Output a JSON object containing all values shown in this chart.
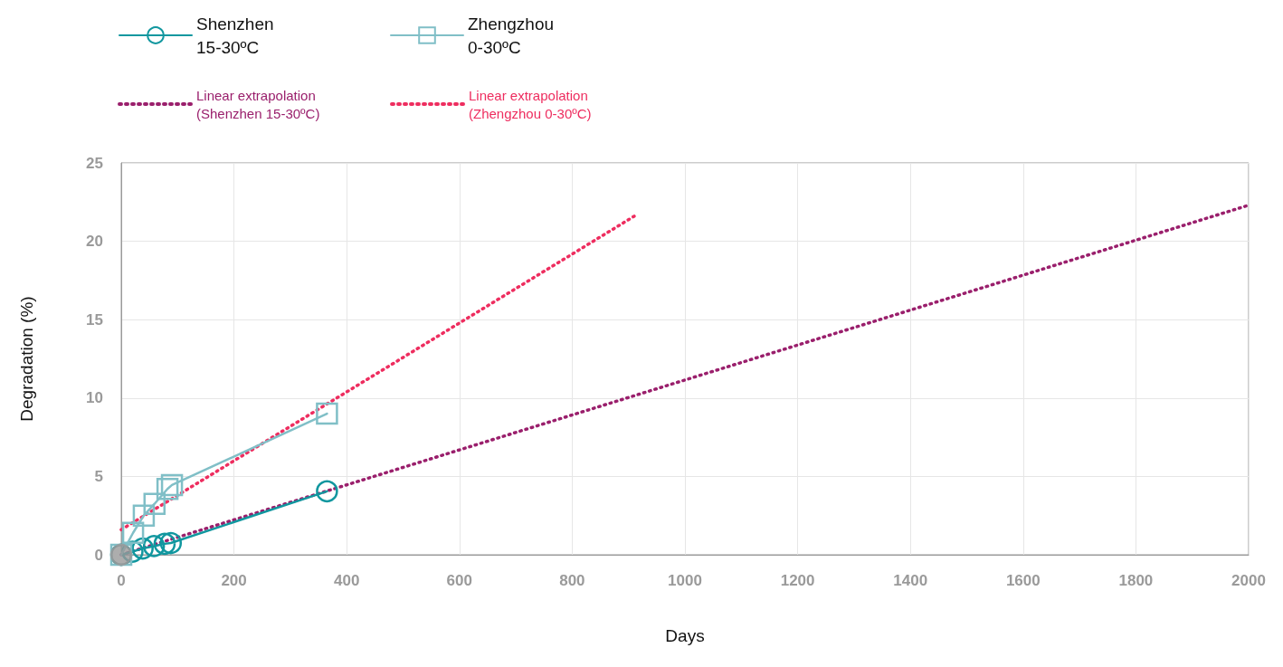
{
  "chart_data": {
    "type": "line",
    "xlabel": "Days",
    "ylabel": "Degradation (%)",
    "xlim": [
      0,
      2000
    ],
    "xticks": [
      0,
      200,
      400,
      600,
      800,
      1000,
      1200,
      1400,
      1600,
      1800,
      2000
    ],
    "ylim": [
      0,
      25
    ],
    "yticks": [
      0,
      5,
      10,
      15,
      20,
      25
    ],
    "grid": true,
    "legend": "top left",
    "line_style": "solid",
    "series": [
      {
        "name": "Shenzhen 15-30ºC",
        "color": "#11979f",
        "marker": "circle",
        "x": [
          0,
          20,
          38,
          58,
          77,
          88,
          365
        ],
        "values": [
          0,
          0.2,
          0.4,
          0.55,
          0.7,
          0.75,
          4.05
        ]
      },
      {
        "name": "Zhengzhou 0-30ºC",
        "color": "#80bfc7",
        "marker": "square",
        "x": [
          0,
          21,
          40,
          59,
          82,
          90,
          365
        ],
        "values": [
          0,
          1.4,
          2.5,
          3.25,
          4.2,
          4.45,
          9.0
        ]
      },
      {
        "name": "Linear extrapolation (Shenzhen 15-30ºC)",
        "color": "#9a1f6c",
        "marker": "none",
        "line_style": "dotted",
        "x": [
          0,
          2000
        ],
        "values": [
          0,
          22.3
        ]
      },
      {
        "name": "Linear extrapolation (Zhengzhou 0-30ºC)",
        "color": "#ee2d5f",
        "marker": "none",
        "line_style": "dotted",
        "x": [
          0,
          910
        ],
        "values": [
          1.6,
          21.6
        ]
      },
      {
        "type": "scatter",
        "color": "#999999",
        "marker": "circle",
        "x": [
          0
        ],
        "values": [
          0
        ]
      }
    ]
  }
}
